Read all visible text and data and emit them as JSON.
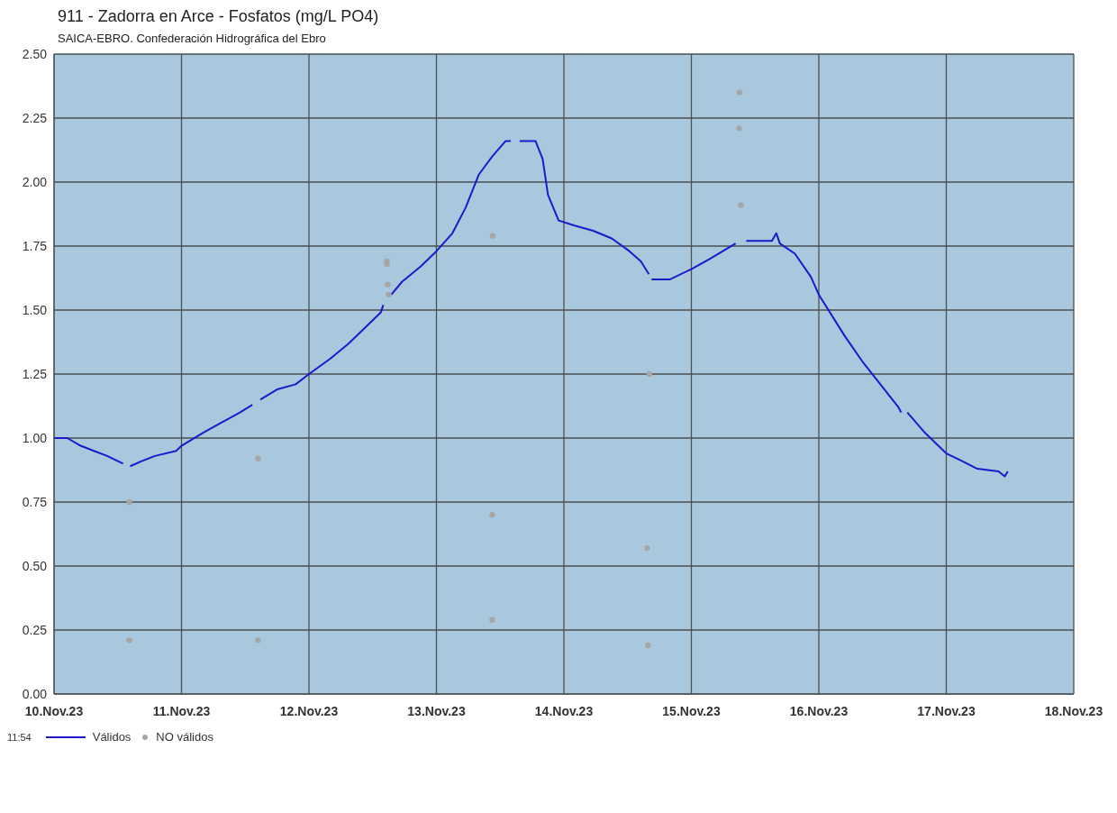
{
  "chart_data": {
    "type": "line",
    "title": "911 - Zadorra en Arce - Fosfatos (mg/L PO4)",
    "subtitle": "SAICA-EBRO. Confederación Hidrográfica del Ebro",
    "annotations": [
      "11:54"
    ],
    "xlim": [
      "--11-10",
      "--11-18"
    ],
    "xticks": [
      {
        "value": "--11-10",
        "label": "10.Nov.23"
      },
      {
        "value": "--11-11",
        "label": "11.Nov.23"
      },
      {
        "value": "--11-12",
        "label": "12.Nov.23"
      },
      {
        "value": "--11-13",
        "label": "13.Nov.23"
      },
      {
        "value": "--11-14",
        "label": "14.Nov.23"
      },
      {
        "value": "--11-15",
        "label": "15.Nov.23"
      },
      {
        "value": "--11-16",
        "label": "16.Nov.23"
      },
      {
        "value": "--11-17",
        "label": "17.Nov.23"
      },
      {
        "value": "--11-18",
        "label": "18.Nov.23"
      }
    ],
    "ylim": [
      0,
      2.5
    ],
    "yticks": [
      {
        "value": 0,
        "label": "0.00"
      },
      {
        "value": 0.25,
        "label": "0.25"
      },
      {
        "value": 0.5,
        "label": "0.50"
      },
      {
        "value": 0.75,
        "label": "0.75"
      },
      {
        "value": 1,
        "label": "1.00"
      },
      {
        "value": 1.25,
        "label": "1.25"
      },
      {
        "value": 1.5,
        "label": "1.50"
      },
      {
        "value": 1.75,
        "label": "1.75"
      },
      {
        "value": 2,
        "label": "2.00"
      },
      {
        "value": 2.25,
        "label": "2.25"
      },
      {
        "value": 2.5,
        "label": "2.50"
      }
    ],
    "grid": true,
    "legend": "bottom left",
    "series": [
      {
        "name": "Válidos",
        "type": "line",
        "color": "#1a1acc",
        "x": [
          "--11-10T00:00",
          "--11-10T02:30",
          "--11-10T05:00",
          "--11-10T07:30",
          "--11-10T10:00",
          "--11-10T13:00",
          "--11-10T13:40",
          "--11-10T14:20",
          "--11-10T16:30",
          "--11-10T19:00",
          "--11-10T23:00",
          "--11-11T00:00",
          "--11-11T04:00",
          "--11-11T07:30",
          "--11-11T11:00",
          "--11-11T13:20",
          "--11-11T14:00",
          "--11-11T14:50",
          "--11-11T18:00",
          "--11-11T21:30",
          "--11-12T00:00",
          "--11-12T04:00",
          "--11-12T07:30",
          "--11-12T11:00",
          "--11-12T13:30",
          "--11-12T14:00",
          "--11-12T14:40",
          "--11-12T15:30",
          "--11-12T17:30",
          "--11-12T21:00",
          "--11-13T00:00",
          "--11-13T03:00",
          "--11-13T05:30",
          "--11-13T08:00",
          "--11-13T10:30",
          "--11-13T13:00",
          "--11-13T14:00",
          "--11-13T14:50",
          "--11-13T15:40",
          "--11-13T18:40",
          "--11-13T20:00",
          "--11-13T21:00",
          "--11-13T23:00",
          "--11-14T02:00",
          "--11-14T05:30",
          "--11-14T09:00",
          "--11-14T12:20",
          "--11-14T14:30",
          "--11-14T16:00",
          "--11-14T16:10",
          "--11-14T16:30",
          "--11-14T20:00",
          "--11-15T00:00",
          "--11-15T03:30",
          "--11-15T08:20",
          "--11-15T09:20",
          "--11-15T10:20",
          "--11-15T15:10",
          "--11-15T16:00",
          "--11-15T16:40",
          "--11-15T19:30",
          "--11-15T22:30",
          "--11-16T00:00",
          "--11-16T04:50",
          "--11-16T08:10",
          "--11-16T15:00",
          "--11-16T15:30",
          "--11-16T16:00",
          "--11-16T16:40",
          "--11-16T20:00",
          "--11-17T00:00",
          "--11-17T03:00",
          "--11-17T05:50",
          "--11-17T09:50",
          "--11-17T11:00",
          "--11-17T11:35"
        ],
        "values": [
          1.0,
          1.0,
          0.97,
          0.95,
          0.93,
          0.9,
          null,
          0.89,
          0.91,
          0.93,
          0.95,
          0.97,
          1.02,
          1.06,
          1.1,
          1.13,
          null,
          1.15,
          1.19,
          1.21,
          1.25,
          1.31,
          1.37,
          1.44,
          1.49,
          1.52,
          null,
          1.56,
          1.61,
          1.67,
          1.73,
          1.8,
          1.9,
          2.03,
          2.1,
          2.16,
          2.16,
          null,
          2.16,
          2.16,
          2.09,
          1.95,
          1.85,
          1.83,
          1.81,
          1.78,
          1.73,
          1.69,
          1.64,
          null,
          1.62,
          1.62,
          1.66,
          1.7,
          1.76,
          null,
          1.77,
          1.77,
          1.8,
          1.76,
          1.72,
          1.63,
          1.56,
          1.4,
          1.3,
          1.12,
          1.1,
          null,
          1.1,
          1.02,
          0.94,
          0.91,
          0.88,
          0.87,
          0.85,
          0.87
        ]
      },
      {
        "name": "NO válidos",
        "type": "scatter",
        "color": "#a6a6a6",
        "x": [
          "--11-10T14:10",
          "--11-10T14:10",
          "--11-11T14:25",
          "--11-11T14:25",
          "--11-12T14:40",
          "--11-12T14:40",
          "--11-12T14:50",
          "--11-12T15:00",
          "--11-13T10:35",
          "--11-13T10:30",
          "--11-13T10:30",
          "--11-14T16:05",
          "--11-14T15:40",
          "--11-14T15:50",
          "--11-15T09:05",
          "--11-15T09:00",
          "--11-15T09:20"
        ],
        "values": [
          0.75,
          0.21,
          0.92,
          0.21,
          1.69,
          1.68,
          1.6,
          1.56,
          1.79,
          0.7,
          0.29,
          1.25,
          0.57,
          0.19,
          2.35,
          2.21,
          1.91
        ]
      }
    ]
  }
}
